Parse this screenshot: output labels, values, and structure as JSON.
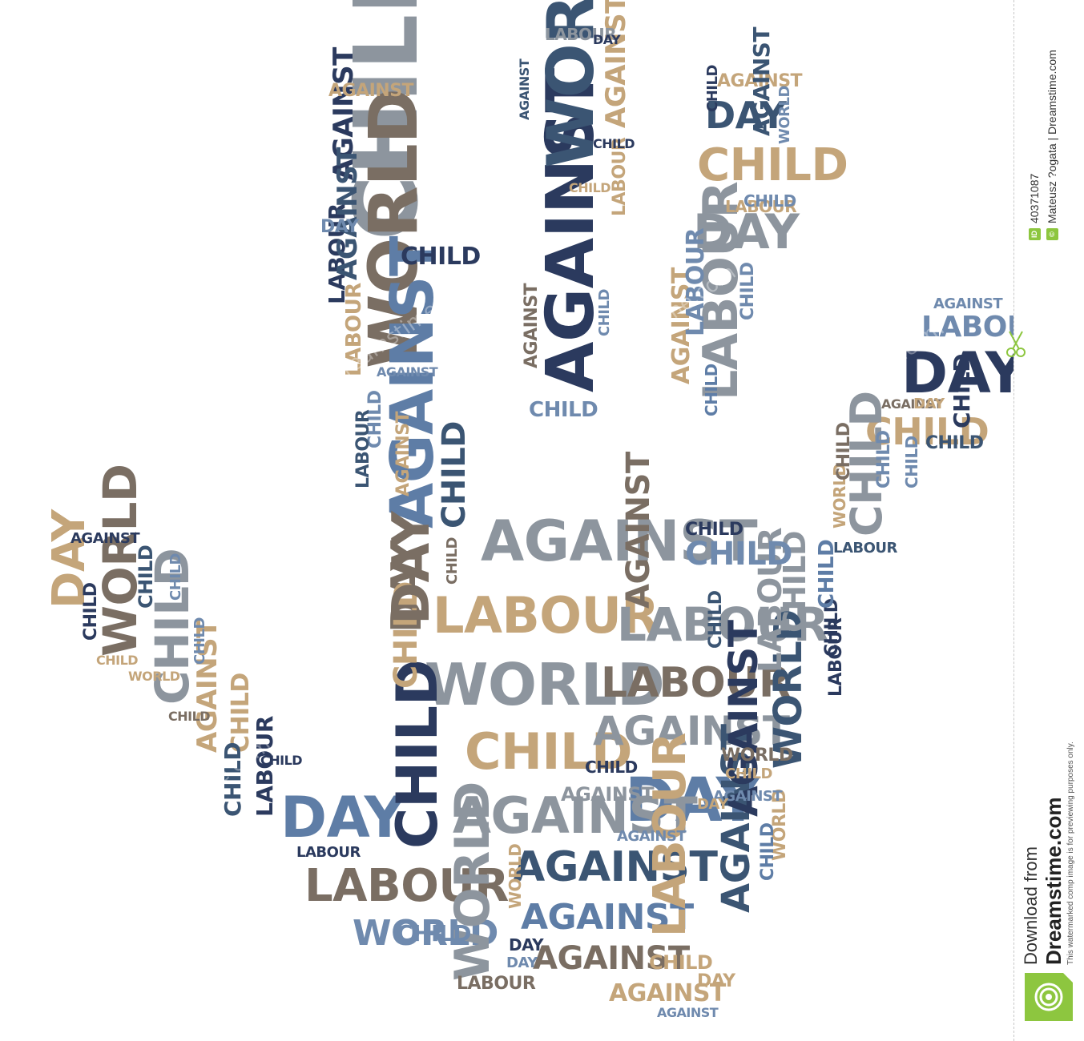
{
  "words": [
    "CHILD",
    "LABOUR",
    "WORLD",
    "DAY",
    "AGAINST"
  ],
  "palette": [
    "#3b5573",
    "#6f8aae",
    "#8d959e",
    "#c4a57a",
    "#7a6e63",
    "#2b3a5e",
    "#9aa4ae",
    "#5e7da6"
  ],
  "watermark_mark": "dreamstime.com",
  "sidebar": {
    "image_id": "40371087",
    "id_badge": "ID",
    "copyright_badge": "©",
    "credit": "Mateusz ?ogata | Dreamstime.com",
    "download_from": "Download from",
    "brand": "Dreamstime.com",
    "note": "This watermarked comp image is for previewing purposes only."
  },
  "icons": {
    "scissors": "scissors-icon",
    "logo": "dreamstime-logo-icon"
  }
}
